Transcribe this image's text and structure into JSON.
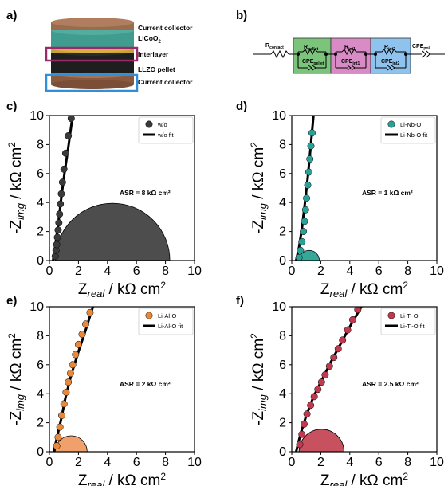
{
  "panel_labels": {
    "a": "a)",
    "b": "b)",
    "c": "c)",
    "d": "d)",
    "e": "e)",
    "f": "f)"
  },
  "schematic": {
    "labels": [
      "Current collector",
      "LiCoO",
      "Interlayer",
      "LLZO pellet",
      "Current collector"
    ],
    "licoo_sub": "2",
    "colors": {
      "collector": "#9b6b4e",
      "licoo2": "#3f9c8f",
      "interlayer": "#c9a13a",
      "llzo": "#1e1e1e",
      "highlight_interlayer": "#9b2a6b",
      "highlight_collector": "#2f8fd8"
    }
  },
  "circuit": {
    "elements": [
      {
        "main": "R",
        "sub": "contact"
      },
      {
        "main": "R",
        "sub": "pellet"
      },
      {
        "main": "CPE",
        "sub": "pellet"
      },
      {
        "main": "R",
        "sub": "int1"
      },
      {
        "main": "CPE",
        "sub": "int1"
      },
      {
        "main": "R",
        "sub": "int2"
      },
      {
        "main": "CPE",
        "sub": "int2"
      },
      {
        "main": "CPE",
        "sub": "pol"
      }
    ],
    "box_colors": [
      "#7cc47c",
      "#d88bc4",
      "#8fc3ee"
    ]
  },
  "axis_text": {
    "ylabel_main": "-Z",
    "ylabel_sub": "img",
    "ylabel_unit": " / kΩ cm",
    "ylabel_sup": "2",
    "xlabel_main": "Z",
    "xlabel_sub": "real",
    "xlabel_unit": " / kΩ cm",
    "xlabel_sup": "2"
  },
  "chart_data": [
    {
      "panel": "c",
      "type": "scatter",
      "xlim": [
        0,
        10
      ],
      "ylim": [
        0,
        10
      ],
      "xticks": [
        0,
        2,
        4,
        6,
        8,
        10
      ],
      "yticks": [
        0,
        2,
        4,
        6,
        8,
        10
      ],
      "color": "#3a3a3a",
      "fill": "#4d4d4d",
      "series": [
        {
          "name": "w/o",
          "x": [
            0.4,
            0.45,
            0.5,
            0.55,
            0.6,
            0.65,
            0.7,
            0.75,
            0.82,
            0.9,
            1.0,
            1.12,
            1.3,
            1.5
          ],
          "y": [
            0.3,
            0.7,
            1.1,
            1.6,
            2.1,
            2.6,
            3.2,
            3.9,
            4.6,
            5.4,
            6.3,
            7.4,
            8.6,
            9.8
          ]
        },
        {
          "name": "w/o fit",
          "x": [
            0.25,
            0.4,
            0.55,
            0.7,
            0.85,
            1.05,
            1.3,
            1.6
          ],
          "y": [
            0,
            1.0,
            2.1,
            3.3,
            4.6,
            6.1,
            7.8,
            10
          ]
        }
      ],
      "semicircle": {
        "x0": 0.4,
        "x1": 8.3
      },
      "annotation": "ASR = 8 kΩ cm²",
      "legend_position": "top-right"
    },
    {
      "panel": "d",
      "type": "scatter",
      "xlim": [
        0,
        10
      ],
      "ylim": [
        0,
        10
      ],
      "xticks": [
        0,
        2,
        4,
        6,
        8,
        10
      ],
      "yticks": [
        0,
        2,
        4,
        6,
        8,
        10
      ],
      "color": "#2aa198",
      "fill": "#35a89a",
      "series": [
        {
          "name": "Li-Nb-O",
          "x": [
            0.5,
            0.6,
            0.7,
            0.8,
            0.88,
            0.95,
            1.02,
            1.1,
            1.18,
            1.25,
            1.32,
            1.4
          ],
          "y": [
            0.2,
            0.7,
            1.3,
            2.0,
            2.7,
            3.5,
            4.3,
            5.2,
            6.1,
            7.0,
            7.9,
            8.8
          ]
        },
        {
          "name": "Li-Nb-O fit",
          "x": [
            0.3,
            0.5,
            0.7,
            0.9,
            1.1,
            1.3,
            1.5
          ],
          "y": [
            0,
            0.9,
            2.2,
            3.9,
            5.7,
            7.8,
            10
          ]
        }
      ],
      "semicircle": {
        "x0": 0.5,
        "x1": 1.9
      },
      "annotation": "ASR = 1 kΩ cm²",
      "legend_position": "top-right"
    },
    {
      "panel": "e",
      "type": "scatter",
      "xlim": [
        0,
        10
      ],
      "ylim": [
        0,
        10
      ],
      "xticks": [
        0,
        2,
        4,
        6,
        8,
        10
      ],
      "yticks": [
        0,
        2,
        4,
        6,
        8,
        10
      ],
      "color": "#e8883a",
      "fill": "#f0a06a",
      "series": [
        {
          "name": "Li-Al-O",
          "x": [
            0.5,
            0.6,
            0.72,
            0.85,
            1.0,
            1.15,
            1.3,
            1.45,
            1.6,
            1.8,
            2.0,
            2.25,
            2.5,
            2.8
          ],
          "y": [
            0.4,
            1.0,
            1.7,
            2.5,
            3.3,
            4.1,
            4.8,
            5.4,
            6.0,
            6.7,
            7.4,
            8.1,
            8.8,
            9.6
          ]
        },
        {
          "name": "Li-Al-O fit",
          "x": [
            0.3,
            0.5,
            0.8,
            1.1,
            1.5,
            2.0,
            2.5,
            3.0
          ],
          "y": [
            0,
            0.9,
            2.2,
            3.7,
            5.3,
            6.9,
            8.4,
            10
          ]
        }
      ],
      "semicircle": {
        "x0": 0.4,
        "x1": 2.6
      },
      "annotation": "ASR = 2 kΩ cm²",
      "legend_position": "top-right"
    },
    {
      "panel": "f",
      "type": "scatter",
      "xlim": [
        0,
        10
      ],
      "ylim": [
        0,
        10
      ],
      "xticks": [
        0,
        2,
        4,
        6,
        8,
        10
      ],
      "yticks": [
        0,
        2,
        4,
        6,
        8,
        10
      ],
      "color": "#c0394e",
      "fill": "#c8515f",
      "series": [
        {
          "name": "Li-Ti-O",
          "x": [
            0.55,
            0.7,
            0.85,
            1.05,
            1.3,
            1.55,
            1.8,
            2.05,
            2.3,
            2.6,
            2.9,
            3.2,
            3.5,
            3.85,
            4.2,
            4.55
          ],
          "y": [
            0.5,
            1.2,
            1.9,
            2.6,
            3.2,
            3.8,
            4.3,
            4.8,
            5.3,
            5.9,
            6.5,
            7.1,
            7.7,
            8.4,
            9.1,
            9.8
          ]
        },
        {
          "name": "Li-Ti-O fit",
          "x": [
            0.3,
            0.6,
            1.0,
            1.5,
            2.1,
            2.7,
            3.4,
            4.1,
            4.8
          ],
          "y": [
            0,
            1.2,
            2.5,
            3.8,
            5.0,
            6.2,
            7.5,
            8.8,
            10
          ]
        }
      ],
      "semicircle": {
        "x0": 0.5,
        "x1": 3.6
      },
      "annotation": "ASR = 2.5 kΩ cm²",
      "legend_position": "top-right"
    }
  ]
}
